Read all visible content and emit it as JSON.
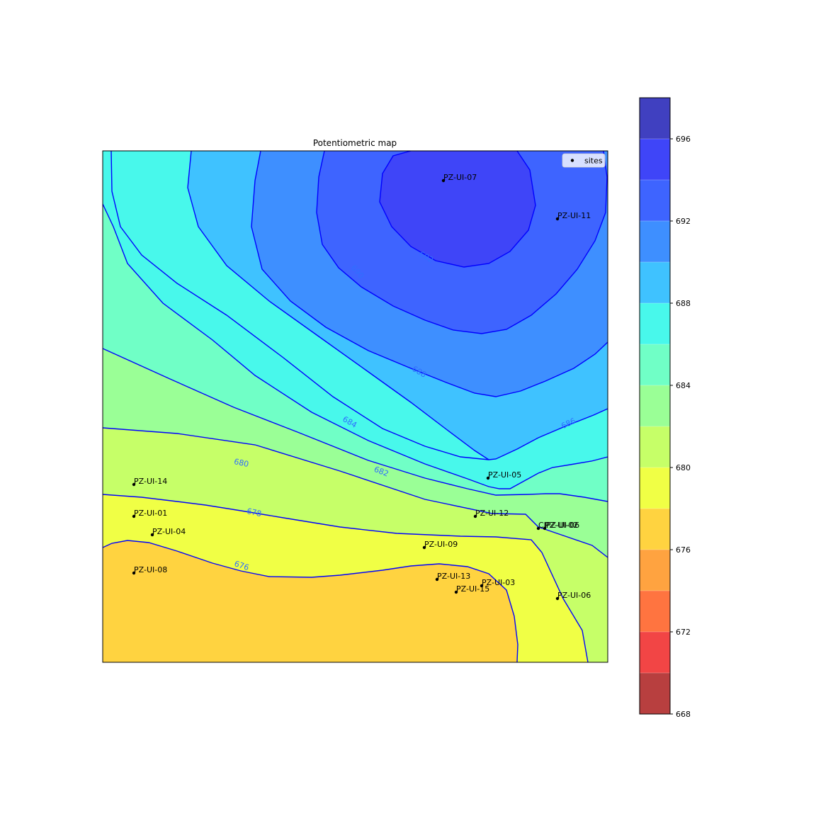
{
  "chart_data": {
    "type": "contour",
    "title": "Potentiometric map",
    "legend": {
      "label": "sites",
      "placement": "top-right"
    },
    "colorbar": {
      "levels": [
        668,
        670,
        672,
        674,
        676,
        678,
        680,
        682,
        684,
        686,
        688,
        690,
        692,
        694,
        696,
        698
      ],
      "tick_labels": [
        "668",
        "672",
        "676",
        "680",
        "684",
        "688",
        "692",
        "696"
      ],
      "colors": [
        "#b83f3f",
        "#f24545",
        "#ff7440",
        "#ffa340",
        "#ffd340",
        "#f0ff45",
        "#c6ff68",
        "#9aff96",
        "#70ffc6",
        "#48f8eb",
        "#3fc2ff",
        "#3e8fff",
        "#3e64ff",
        "#3f45f8",
        "#4040c0"
      ],
      "range": [
        668,
        698
      ]
    },
    "contour_lines": {
      "color": "#0000ff",
      "labels": [
        "676",
        "678",
        "680",
        "682",
        "684",
        "686",
        "688",
        "690",
        "692"
      ]
    },
    "sites": [
      {
        "name": "PZ-UI-07"
      },
      {
        "name": "PZ-UI-11"
      },
      {
        "name": "PZ-UI-05"
      },
      {
        "name": "PZ-UI-14"
      },
      {
        "name": "PZ-UI-12"
      },
      {
        "name": "PZ-UI-01"
      },
      {
        "name": "CIPZ-UI-06"
      },
      {
        "name": "PZ-UI-02"
      },
      {
        "name": "PZ-UI-04"
      },
      {
        "name": "PZ-UI-09"
      },
      {
        "name": "PZ-UI-08"
      },
      {
        "name": "PZ-UI-13"
      },
      {
        "name": "PZ-UI-03"
      },
      {
        "name": "PZ-UI-15"
      },
      {
        "name": "PZ-UI-06"
      }
    ]
  }
}
